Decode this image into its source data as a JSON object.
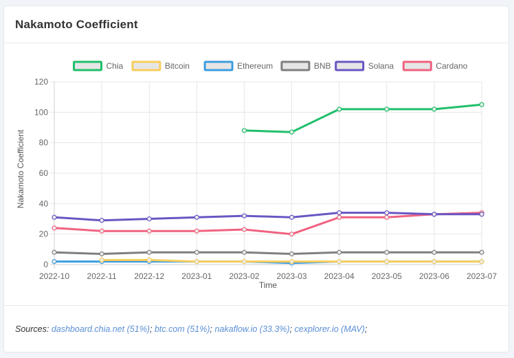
{
  "card": {
    "title": "Nakamoto Coefficient"
  },
  "footer": {
    "label": "Sources:",
    "sources": [
      {
        "text": "dashboard.chia.net (51%)"
      },
      {
        "text": "btc.com (51%)"
      },
      {
        "text": "nakaflow.io (33.3%)"
      },
      {
        "text": "cexplorer.io (MAV)"
      }
    ]
  },
  "chart_data": {
    "type": "line",
    "title": "",
    "xlabel": "Time",
    "ylabel": "Nakamoto Coefficient",
    "ylim": [
      0,
      120
    ],
    "yticks": [
      0,
      20,
      40,
      60,
      80,
      100,
      120
    ],
    "grid": true,
    "legend_position": "top",
    "x": [
      "2022-10",
      "2022-11",
      "2022-12",
      "2023-01",
      "2023-02",
      "2023-03",
      "2023-04",
      "2023-05",
      "2023-06",
      "2023-07"
    ],
    "series": [
      {
        "name": "Chia",
        "color": "#1fbf6a",
        "values": [
          null,
          null,
          null,
          null,
          88,
          87,
          102,
          102,
          102,
          105
        ]
      },
      {
        "name": "Bitcoin",
        "color": "#f9ce5c",
        "values": [
          null,
          3,
          3,
          2,
          2,
          2,
          2,
          2,
          2,
          2
        ]
      },
      {
        "name": "Ethereum",
        "color": "#3d9de0",
        "values": [
          2,
          2,
          2,
          2,
          2,
          1,
          2,
          2,
          2,
          2
        ]
      },
      {
        "name": "BNB",
        "color": "#7f7f7f",
        "values": [
          8,
          7,
          8,
          8,
          8,
          7,
          8,
          8,
          8,
          8
        ]
      },
      {
        "name": "Solana",
        "color": "#6a55c2",
        "values": [
          31,
          29,
          30,
          31,
          32,
          31,
          34,
          34,
          33,
          33
        ]
      },
      {
        "name": "Cardano",
        "color": "#f0627f",
        "values": [
          24,
          22,
          22,
          22,
          23,
          20,
          31,
          31,
          33,
          34
        ]
      }
    ]
  }
}
